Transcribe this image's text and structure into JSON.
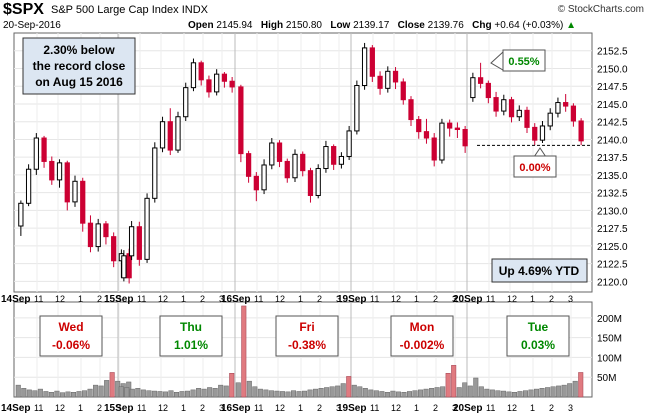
{
  "header": {
    "symbol": "$SPX",
    "name": "S&P 500 Large Cap Index",
    "exchange": "INDX",
    "date": "20-Sep-2016",
    "open_label": "Open",
    "open": "2145.94",
    "high_label": "High",
    "high": "2150.80",
    "low_label": "Low",
    "low": "2139.17",
    "close_label": "Close",
    "close": "2139.76",
    "chg_label": "Chg",
    "chg": "+0.64 (+0.03%)",
    "brand": "© StockCharts.com"
  },
  "annotations": {
    "record_note": [
      "2.30% below",
      "the record close",
      "on Aug 15 2016"
    ],
    "ytd": "Up 4.69% YTD",
    "high_callout": "0.55%",
    "low_callout": "0.00%"
  },
  "colors": {
    "up": "#000000",
    "down": "#cc0033",
    "callout_green": "#008800",
    "callout_red": "#cc0000",
    "box_fill": "#dce6f2",
    "volume_fill": "#999999",
    "volume_up_edge": "#666666",
    "volume_down_fill": "#e07a80"
  },
  "chart_data": [
    {
      "type": "candlestick",
      "title": "$SPX S&P 500 Large Cap Index INDX",
      "ylim": [
        2118.5,
        2155
      ],
      "y_ticks": [
        "2120.0",
        "2122.5",
        "2125.0",
        "2127.5",
        "2130.0",
        "2132.5",
        "2135.0",
        "2137.5",
        "2140.0",
        "2142.5",
        "2145.0",
        "2147.5",
        "2150.0",
        "2152.5"
      ],
      "reference_line": 2139.17,
      "days": [
        {
          "label": "14Sep",
          "ticks": [
            "14Sep",
            "11",
            "12",
            "1",
            "2",
            "3"
          ],
          "ohlc": [
            [
              2127.8,
              2131.4,
              2126.4,
              2131.0
            ],
            [
              2131.0,
              2136.5,
              2130.6,
              2135.8
            ],
            [
              2135.8,
              2140.9,
              2135.0,
              2140.2
            ],
            [
              2140.2,
              2140.5,
              2136.0,
              2136.9
            ],
            [
              2136.9,
              2137.6,
              2133.6,
              2134.3
            ],
            [
              2134.3,
              2137.2,
              2133.2,
              2136.7
            ],
            [
              2136.7,
              2137.0,
              2130.0,
              2131.2
            ],
            [
              2131.2,
              2134.9,
              2130.5,
              2134.1
            ],
            [
              2134.1,
              2134.6,
              2127.0,
              2128.2
            ],
            [
              2128.2,
              2129.3,
              2124.1,
              2124.9
            ],
            [
              2124.9,
              2128.8,
              2124.2,
              2128.1
            ],
            [
              2128.1,
              2128.5,
              2125.2,
              2126.3
            ],
            [
              2126.3,
              2126.9,
              2122.0,
              2122.9
            ],
            [
              2122.9,
              2124.5,
              2120.5,
              2123.9
            ],
            [
              2123.9,
              2124.6,
              2119.7,
              2120.5
            ]
          ]
        },
        {
          "label": "15Sep",
          "ticks": [
            "15Sep",
            "11",
            "12",
            "1",
            "2",
            "3"
          ],
          "ohlc": [
            [
              2120.5,
              2124.4,
              2120.0,
              2123.6
            ],
            [
              2123.6,
              2128.5,
              2123.0,
              2127.7
            ],
            [
              2127.7,
              2128.4,
              2122.2,
              2123.1
            ],
            [
              2123.1,
              2132.4,
              2122.6,
              2131.7
            ],
            [
              2131.7,
              2139.6,
              2131.1,
              2138.8
            ],
            [
              2138.8,
              2143.2,
              2138.2,
              2142.5
            ],
            [
              2142.5,
              2144.4,
              2137.8,
              2138.5
            ],
            [
              2138.5,
              2143.9,
              2138.1,
              2143.2
            ],
            [
              2143.2,
              2148.0,
              2142.6,
              2147.3
            ],
            [
              2147.3,
              2151.4,
              2146.8,
              2150.8
            ],
            [
              2150.8,
              2151.1,
              2147.6,
              2148.4
            ],
            [
              2148.4,
              2149.0,
              2145.9,
              2146.7
            ],
            [
              2146.7,
              2149.9,
              2146.2,
              2149.2
            ],
            [
              2149.2,
              2149.5,
              2147.3,
              2148.2
            ],
            [
              2148.2,
              2148.8,
              2146.6,
              2147.4
            ]
          ]
        },
        {
          "label": "16Sep",
          "ticks": [
            "16Sep",
            "11",
            "12",
            "1",
            "2",
            "3"
          ],
          "ohlc": [
            [
              2147.4,
              2147.7,
              2136.8,
              2138.0
            ],
            [
              2138.0,
              2138.4,
              2133.9,
              2134.8
            ],
            [
              2134.8,
              2135.4,
              2131.3,
              2132.9
            ],
            [
              2132.9,
              2137.2,
              2132.3,
              2136.4
            ],
            [
              2136.4,
              2140.2,
              2135.8,
              2139.5
            ],
            [
              2139.5,
              2139.9,
              2136.1,
              2136.9
            ],
            [
              2136.9,
              2137.3,
              2133.9,
              2134.6
            ],
            [
              2134.6,
              2138.6,
              2134.0,
              2137.9
            ],
            [
              2137.9,
              2138.3,
              2134.8,
              2135.6
            ],
            [
              2135.6,
              2136.0,
              2131.1,
              2132.1
            ],
            [
              2132.1,
              2136.5,
              2131.7,
              2135.9
            ],
            [
              2135.9,
              2139.8,
              2135.3,
              2139.0
            ],
            [
              2139.0,
              2139.3,
              2135.7,
              2136.5
            ],
            [
              2136.5,
              2138.2,
              2135.9,
              2137.6
            ],
            [
              2137.6,
              2141.9,
              2137.1,
              2141.2
            ]
          ]
        },
        {
          "label": "19Sep",
          "ticks": [
            "19Sep",
            "11",
            "12",
            "1",
            "2",
            "3"
          ],
          "ohlc": [
            [
              2141.2,
              2148.3,
              2140.7,
              2147.6
            ],
            [
              2147.6,
              2153.6,
              2147.0,
              2152.9
            ],
            [
              2152.9,
              2153.3,
              2148.1,
              2148.9
            ],
            [
              2148.9,
              2149.6,
              2146.3,
              2147.2
            ],
            [
              2147.2,
              2150.3,
              2146.6,
              2149.6
            ],
            [
              2149.6,
              2150.2,
              2147.1,
              2148.1
            ],
            [
              2148.1,
              2148.6,
              2144.9,
              2145.6
            ],
            [
              2145.6,
              2146.1,
              2141.9,
              2142.8
            ],
            [
              2142.8,
              2143.3,
              2140.1,
              2141.1
            ],
            [
              2141.1,
              2142.9,
              2139.4,
              2140.2
            ],
            [
              2140.2,
              2140.9,
              2136.2,
              2137.1
            ],
            [
              2137.1,
              2142.9,
              2136.6,
              2142.3
            ],
            [
              2142.3,
              2142.8,
              2140.4,
              2141.6
            ],
            [
              2141.6,
              2142.4,
              2140.2,
              2141.4
            ],
            [
              2141.4,
              2141.9,
              2138.1,
              2139.1
            ]
          ]
        },
        {
          "label": "20Sep",
          "ticks": [
            "20Sep",
            "11",
            "12",
            "1",
            "2",
            "3"
          ],
          "ohlc": [
            [
              2145.9,
              2149.4,
              2145.3,
              2148.7
            ],
            [
              2148.7,
              2150.8,
              2147.2,
              2147.9
            ],
            [
              2147.9,
              2148.3,
              2145.1,
              2145.9
            ],
            [
              2145.9,
              2146.7,
              2143.2,
              2144.0
            ],
            [
              2144.0,
              2146.3,
              2143.4,
              2145.6
            ],
            [
              2145.6,
              2146.0,
              2142.4,
              2143.2
            ],
            [
              2143.2,
              2144.8,
              2142.6,
              2144.1
            ],
            [
              2144.1,
              2144.6,
              2140.9,
              2141.7
            ],
            [
              2141.7,
              2142.3,
              2139.2,
              2139.9
            ],
            [
              2139.9,
              2142.6,
              2139.5,
              2141.9
            ],
            [
              2141.9,
              2144.4,
              2141.3,
              2143.7
            ],
            [
              2143.7,
              2145.9,
              2143.1,
              2145.2
            ],
            [
              2145.2,
              2146.4,
              2143.9,
              2144.7
            ],
            [
              2144.7,
              2145.1,
              2141.8,
              2142.6
            ],
            [
              2142.6,
              2143.0,
              2139.2,
              2139.8
            ]
          ]
        }
      ]
    },
    {
      "type": "bar",
      "title": "Volume",
      "ylim": [
        0,
        240
      ],
      "y_ticks": [
        "50M",
        "100M",
        "150M",
        "200M"
      ],
      "day_labels": [
        {
          "day": "Wed",
          "chg": "-0.06%"
        },
        {
          "day": "Thu",
          "chg": "1.01%"
        },
        {
          "day": "Fri",
          "chg": "-0.38%"
        },
        {
          "day": "Mon",
          "chg": "-0.002%"
        },
        {
          "day": "Tue",
          "chg": "0.03%"
        }
      ],
      "volumes": [
        [
          30,
          22,
          18,
          16,
          20,
          14,
          12,
          15,
          11,
          13,
          12,
          14,
          16,
          20,
          30,
          28,
          42,
          62,
          40,
          34,
          38
        ],
        [
          26,
          24,
          20,
          22,
          18,
          16,
          15,
          14,
          13,
          16,
          12,
          14,
          15,
          18,
          22,
          20,
          24,
          22,
          30,
          28,
          60
        ],
        [
          36,
          230,
          40,
          26,
          20,
          18,
          16,
          15,
          14,
          13,
          16,
          14,
          15,
          18,
          20,
          22,
          24,
          26,
          28,
          34,
          52
        ],
        [
          30,
          26,
          22,
          18,
          16,
          14,
          12,
          15,
          13,
          12,
          14,
          16,
          18,
          20,
          22,
          24,
          26,
          60,
          80,
          24,
          36
        ],
        [
          28,
          48,
          26,
          20,
          18,
          16,
          15,
          13,
          12,
          14,
          16,
          18,
          20,
          22,
          24,
          26,
          28,
          30,
          34,
          40,
          62
        ]
      ]
    }
  ]
}
